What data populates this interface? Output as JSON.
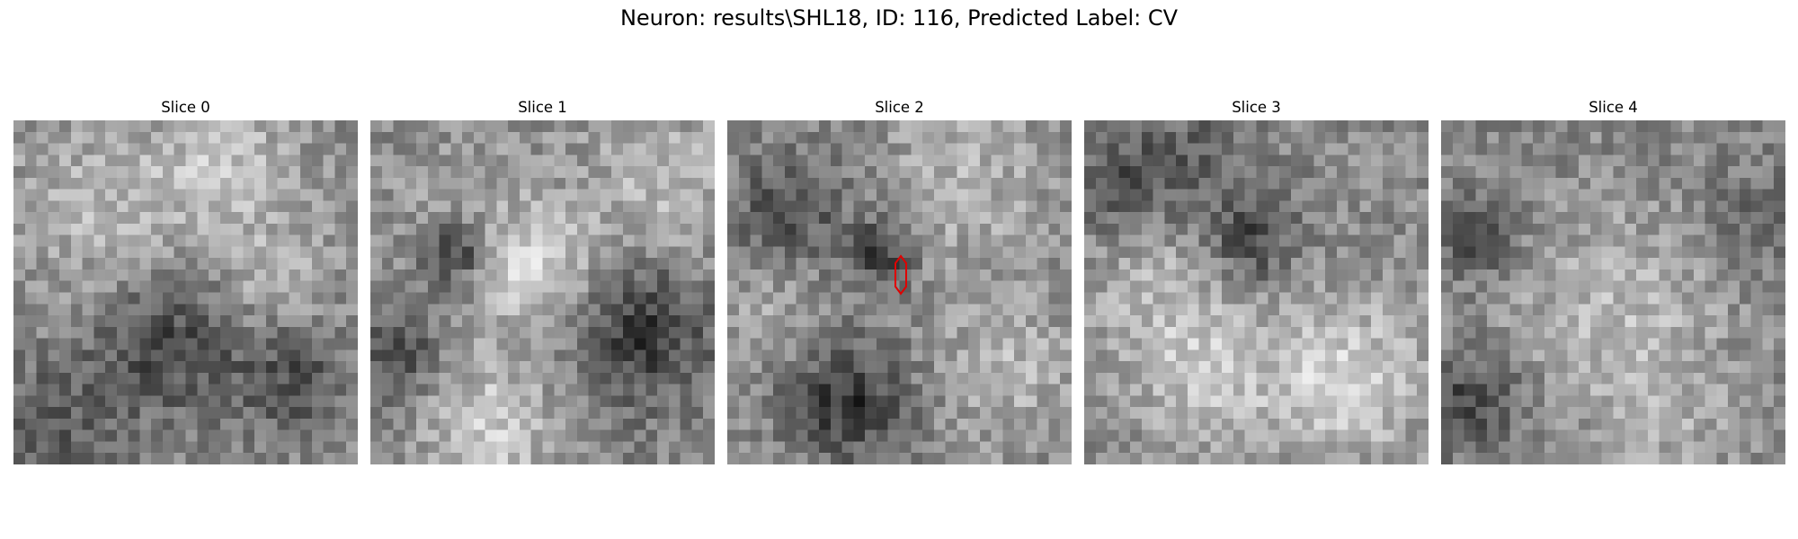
{
  "figure": {
    "title": "Neuron: results\\SHL18, ID: 116, Predicted Label: CV"
  },
  "panels": [
    {
      "title": "Slice 0"
    },
    {
      "title": "Slice 1"
    },
    {
      "title": "Slice 2"
    },
    {
      "title": "Slice 3"
    },
    {
      "title": "Slice 4"
    }
  ],
  "colormap": "gray",
  "marker_color": "#e00000"
}
